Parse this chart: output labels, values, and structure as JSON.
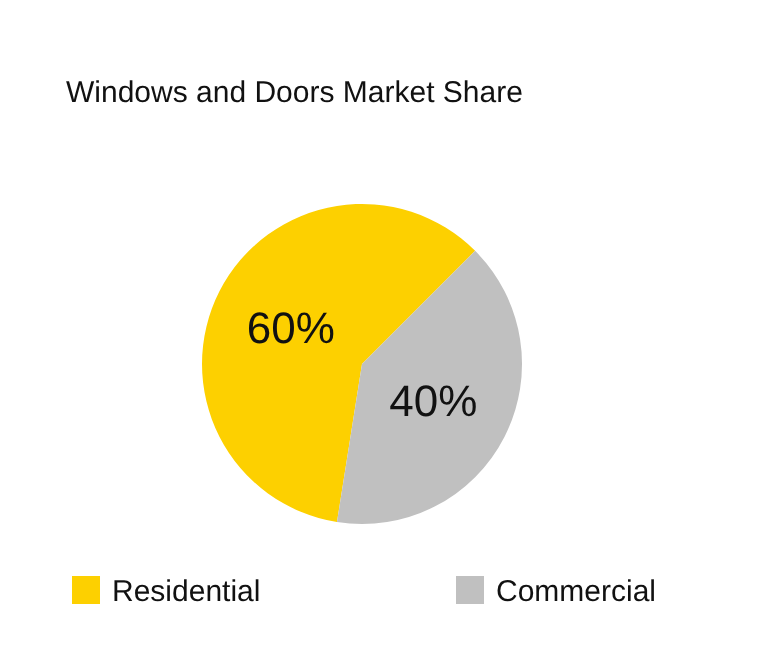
{
  "chart_data": {
    "type": "pie",
    "title": "Windows and Doors Market Share",
    "categories": [
      "Residential",
      "Commercial"
    ],
    "values": [
      60,
      40
    ],
    "colors": [
      "#fdd000",
      "#c0c0c0"
    ],
    "value_labels": [
      "60%",
      "40%"
    ],
    "legend": "bottom"
  }
}
